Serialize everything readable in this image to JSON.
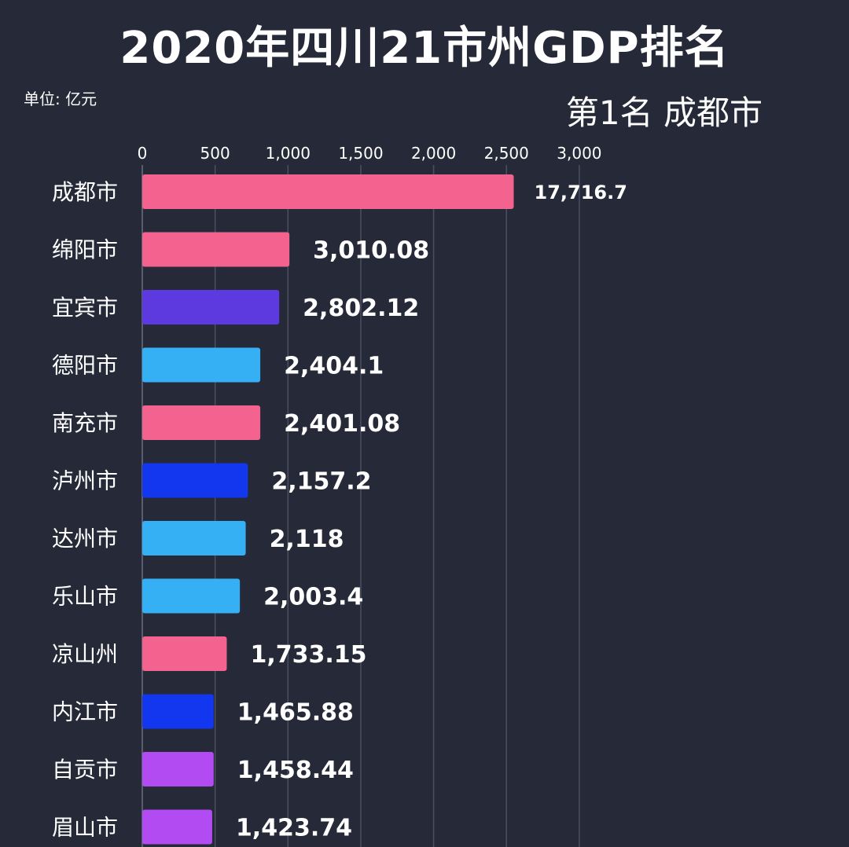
{
  "title": "2020年四川21市州GDP排名",
  "unit_label": "单位: 亿元",
  "rank_label": "第1名  成都市",
  "chart_data": {
    "type": "bar",
    "orientation": "horizontal",
    "title": "2020年四川21市州GDP排名",
    "xlabel": "",
    "ylabel": "",
    "xlim": [
      0,
      3000
    ],
    "x_ticks": [
      0,
      500,
      1000,
      1500,
      2000,
      2500,
      3000
    ],
    "x_tick_labels": [
      "0",
      "500",
      "1,000",
      "1,500",
      "2,000",
      "2,500",
      "3,000"
    ],
    "grid": true,
    "categories": [
      "成都市",
      "绵阳市",
      "宜宾市",
      "德阳市",
      "南充市",
      "泸州市",
      "达州市",
      "乐山市",
      "凉山州",
      "内江市",
      "自贡市",
      "眉山市"
    ],
    "values": [
      17716.7,
      3010.08,
      2802.12,
      2404.1,
      2401.08,
      2157.2,
      2118,
      2003.4,
      1733.15,
      1465.88,
      1458.44,
      1423.74
    ],
    "value_labels": [
      "17,716.7",
      "3,010.08",
      "2,802.12",
      "2,404.1",
      "2,401.08",
      "2,157.2",
      "2,118",
      "2,003.4",
      "1,733.15",
      "1,465.88",
      "1,458.44",
      "1,423.74"
    ],
    "bar_length_values": [
      2550,
      1010,
      940,
      810,
      810,
      725,
      710,
      670,
      580,
      490,
      490,
      480
    ],
    "colors": [
      "#f4628f",
      "#f4628f",
      "#5d3ae0",
      "#35b0f5",
      "#f4628f",
      "#1336ef",
      "#35b0f5",
      "#35b0f5",
      "#f4628f",
      "#1336ef",
      "#b34bf2",
      "#b34bf2"
    ]
  }
}
